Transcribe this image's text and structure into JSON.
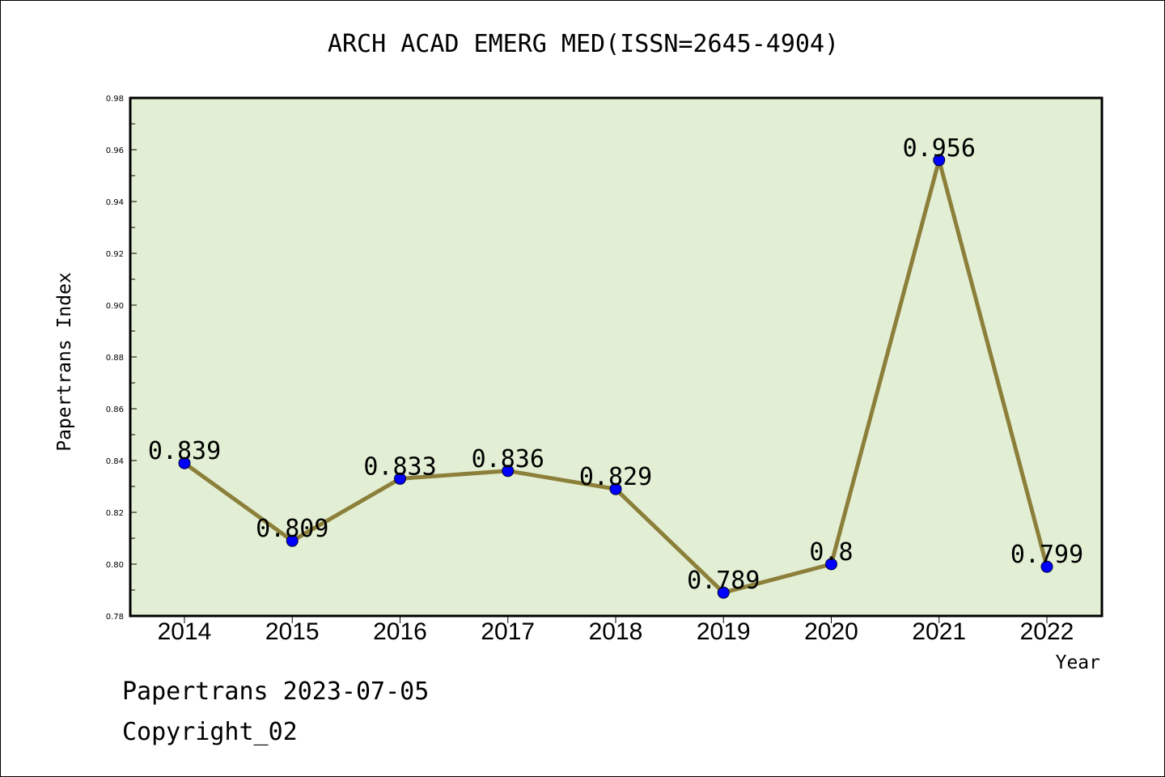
{
  "title": "ARCH ACAD EMERG MED(ISSN=2645-4904)",
  "footer": {
    "source": "Papertrans 2023-07-05",
    "copyright": "Copyright_02"
  },
  "chart_data": {
    "type": "line",
    "title": "ARCH ACAD EMERG MED(ISSN=2645-4904)",
    "xlabel": "Year",
    "ylabel": "Papertrans Index",
    "categories": [
      "2014",
      "2015",
      "2016",
      "2017",
      "2018",
      "2019",
      "2020",
      "2021",
      "2022"
    ],
    "values": [
      0.839,
      0.809,
      0.833,
      0.836,
      0.829,
      0.789,
      0.8,
      0.956,
      0.799
    ],
    "data_labels": [
      "0.839",
      "0.809",
      "0.833",
      "0.836",
      "0.829",
      "0.789",
      "0.8",
      "0.956",
      "0.799"
    ],
    "ylim": [
      0.78,
      0.98
    ],
    "yticks": [
      "0.78",
      "0.80",
      "0.82",
      "0.84",
      "0.86",
      "0.88",
      "0.90",
      "0.92",
      "0.94",
      "0.96",
      "0.98"
    ],
    "grid": false,
    "colors": {
      "plot_background": "#e2efd4",
      "line": "#8c7f3a",
      "marker": "#0000ff"
    }
  }
}
